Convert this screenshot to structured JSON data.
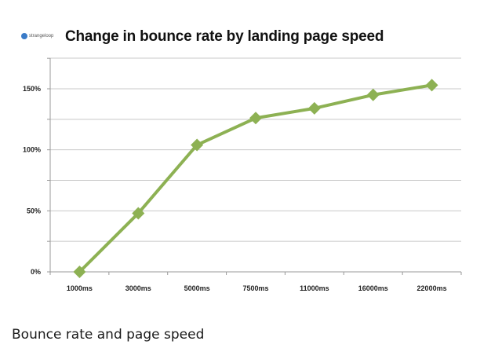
{
  "logo": {
    "text": "strangeloop",
    "icon": "strangeloop-logo-icon"
  },
  "caption": "Bounce rate and page speed",
  "colors": {
    "line": "#8db153",
    "gridline": "#c8c8c8",
    "axis": "#999999",
    "text": "#222222"
  },
  "chart_data": {
    "type": "line",
    "title": "Change in bounce rate by landing page speed",
    "xlabel": "",
    "ylabel": "",
    "categories": [
      "1000ms",
      "3000ms",
      "5000ms",
      "7500ms",
      "11000ms",
      "16000ms",
      "22000ms"
    ],
    "series": [
      {
        "values": [
          0,
          48,
          104,
          126,
          134,
          145,
          153
        ]
      }
    ],
    "ylim": [
      0,
      150
    ],
    "yticks": [
      0,
      50,
      100,
      150
    ],
    "ytick_labels": [
      "0%",
      "50%",
      "100%",
      "150%"
    ],
    "grid": true,
    "legend": "none",
    "marker": "diamond"
  }
}
